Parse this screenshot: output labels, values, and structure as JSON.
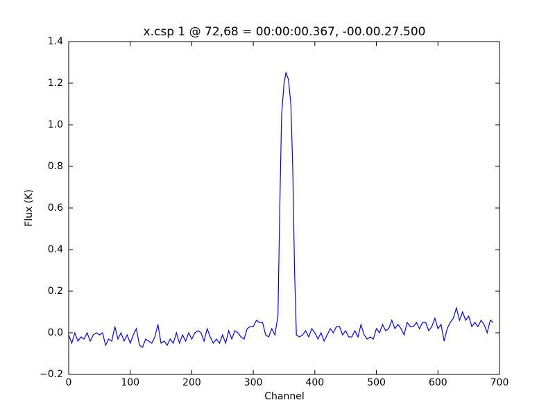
{
  "chart_data": {
    "type": "line",
    "title": "x.csp 1 @ 72,68 = 00:00:00.367, -00.00.27.500",
    "xlabel": "Channel",
    "ylabel": "Flux (K)",
    "x": [
      0,
      5,
      10,
      15,
      20,
      25,
      30,
      35,
      40,
      45,
      50,
      55,
      60,
      65,
      70,
      75,
      80,
      85,
      90,
      95,
      100,
      105,
      110,
      115,
      120,
      125,
      130,
      135,
      140,
      145,
      150,
      155,
      160,
      165,
      170,
      175,
      180,
      185,
      190,
      195,
      200,
      205,
      210,
      215,
      220,
      225,
      230,
      235,
      240,
      245,
      250,
      255,
      260,
      265,
      270,
      275,
      280,
      285,
      290,
      295,
      300,
      305,
      310,
      315,
      320,
      325,
      330,
      335,
      340,
      343,
      346,
      350,
      353,
      357,
      361,
      364,
      367,
      370,
      375,
      380,
      385,
      390,
      395,
      400,
      405,
      410,
      415,
      420,
      425,
      430,
      435,
      440,
      445,
      450,
      455,
      460,
      465,
      470,
      475,
      480,
      485,
      490,
      495,
      500,
      505,
      510,
      515,
      520,
      525,
      530,
      535,
      540,
      545,
      550,
      555,
      560,
      565,
      570,
      575,
      580,
      585,
      590,
      595,
      600,
      605,
      610,
      615,
      620,
      625,
      630,
      635,
      640,
      645,
      650,
      655,
      660,
      665,
      670,
      675,
      680,
      685,
      690
    ],
    "series": [
      {
        "name": "x.csp 1",
        "color": "#0000ff",
        "values": [
          -0.01,
          -0.05,
          0.0,
          -0.04,
          -0.02,
          -0.03,
          0.0,
          -0.04,
          -0.01,
          0.0,
          -0.01,
          0.0,
          -0.06,
          -0.03,
          -0.04,
          0.03,
          -0.03,
          0.0,
          -0.04,
          -0.01,
          -0.05,
          -0.01,
          0.02,
          -0.06,
          -0.07,
          -0.03,
          -0.04,
          -0.05,
          -0.02,
          0.04,
          -0.05,
          -0.04,
          -0.06,
          -0.03,
          -0.05,
          0.0,
          -0.05,
          -0.01,
          -0.04,
          0.0,
          -0.03,
          0.0,
          0.01,
          0.0,
          -0.04,
          0.02,
          -0.02,
          -0.05,
          -0.03,
          -0.05,
          -0.01,
          -0.05,
          0.01,
          -0.03,
          0.01,
          0.0,
          -0.02,
          -0.03,
          0.02,
          0.03,
          0.03,
          0.06,
          0.05,
          0.05,
          -0.01,
          -0.02,
          0.02,
          -0.01,
          0.08,
          0.6,
          1.05,
          1.2,
          1.25,
          1.22,
          1.1,
          0.8,
          0.3,
          -0.01,
          -0.02,
          -0.01,
          0.01,
          -0.02,
          0.02,
          0.0,
          -0.03,
          0.0,
          -0.04,
          -0.01,
          0.02,
          0.0,
          0.03,
          0.03,
          -0.01,
          0.01,
          -0.02,
          -0.02,
          0.01,
          -0.02,
          0.04,
          -0.01,
          -0.03,
          -0.02,
          -0.03,
          0.02,
          0.0,
          0.04,
          0.01,
          0.02,
          0.06,
          0.02,
          0.04,
          0.02,
          -0.01,
          0.05,
          0.03,
          0.03,
          0.05,
          0.02,
          0.05,
          0.05,
          0.01,
          0.03,
          0.07,
          0.02,
          0.04,
          -0.04,
          0.02,
          0.05,
          0.07,
          0.12,
          0.06,
          0.1,
          0.06,
          0.08,
          0.03,
          0.05,
          0.03,
          0.06,
          0.04,
          0.0,
          0.06,
          0.05
        ]
      }
    ],
    "xlim": [
      0,
      700
    ],
    "xticks": [
      0,
      100,
      200,
      300,
      400,
      500,
      600,
      700
    ],
    "ylim": [
      -0.2,
      1.4
    ],
    "yticks": [
      {
        "value": -0.2,
        "label": "−0.2"
      },
      {
        "value": 0,
        "label": "0.0"
      },
      0.2,
      0.4,
      0.6,
      0.8,
      {
        "value": 1,
        "label": "1.0"
      },
      1.2,
      1.4
    ]
  }
}
